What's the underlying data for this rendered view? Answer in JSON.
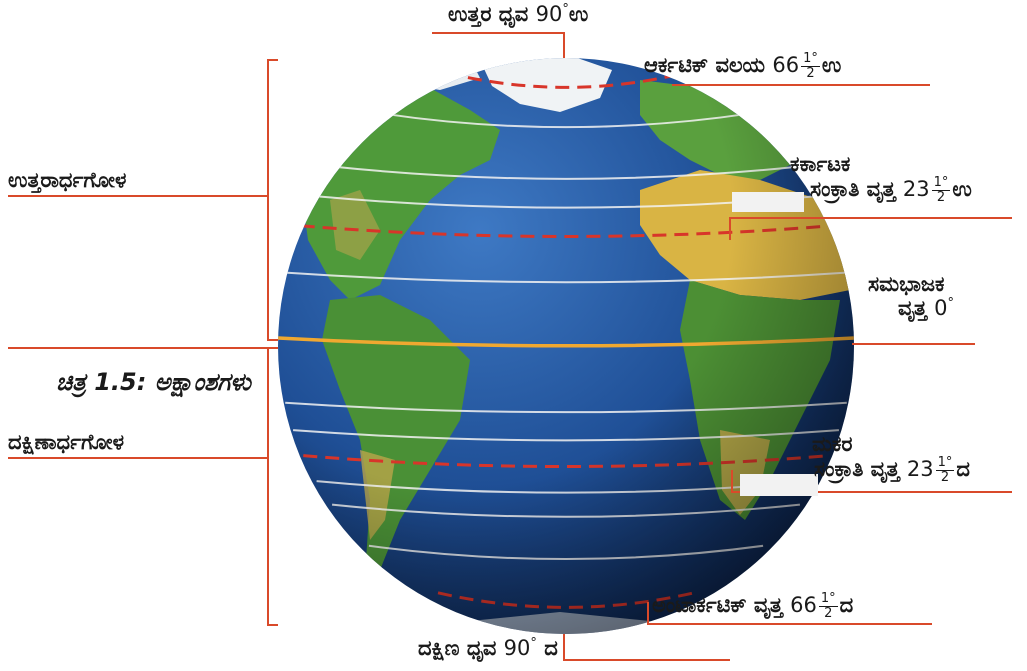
{
  "labels": {
    "north_pole": {
      "text": "ಉತ್ತರ ಧೃವ",
      "value": "90",
      "unit": "ಉ"
    },
    "arctic": {
      "text": "ಆರ್ಕಟಿಕ್ ವಲಯ",
      "whole": "66",
      "num": "1°",
      "den": "2",
      "unit": "ಉ"
    },
    "northern_hemisphere": "ಉತ್ತರಾರ್ಧಗೋಳ",
    "cancer": {
      "line1": "ಕರ್ಕಾಟಕ",
      "line2": "ಸಂಕ್ರಾತಿ ವೃತ್ತ",
      "whole": "23",
      "num": "1°",
      "den": "2",
      "unit": "ಉ"
    },
    "equator": {
      "line1": "ಸಮಭಾಜಕ",
      "line2": "ವೃತ್ತ",
      "value": "0"
    },
    "caption": "ಚಿತ್ರ 1.5: ಅಕ್ಷಾಂಶಗಳು",
    "southern_hemisphere": "ದಕ್ಷಿಣಾರ್ಧಗೋಳ",
    "capricorn": {
      "line1": "ಮಕರ",
      "line2": "ಸಂಕ್ರಾತಿ ವೃತ್ತ",
      "whole": "23",
      "num": "1°",
      "den": "2",
      "unit": "ದ"
    },
    "antarctic": {
      "text": "ಅಂಟಾರ್ಕಟಿಕ್ ವೃತ್ತ",
      "whole": "66",
      "num": "1°",
      "den": "2",
      "unit": "ದ"
    },
    "south_pole": {
      "text": "ದಕ್ಷಿಣ ಧೃವ",
      "value": "90",
      "unit": "ದ"
    }
  },
  "colors": {
    "ocean": "#1f4f96",
    "ocean_dark": "#0c2550",
    "land_green": "#4f9a3a",
    "land_desert": "#d9b444",
    "ice": "#f4f6f8",
    "latitude_line": "#f2f2f2",
    "tropic_line": "#d8352a",
    "equator_line": "#f0a830",
    "leader_line": "#d94a2a",
    "text": "#1a1a1a"
  }
}
